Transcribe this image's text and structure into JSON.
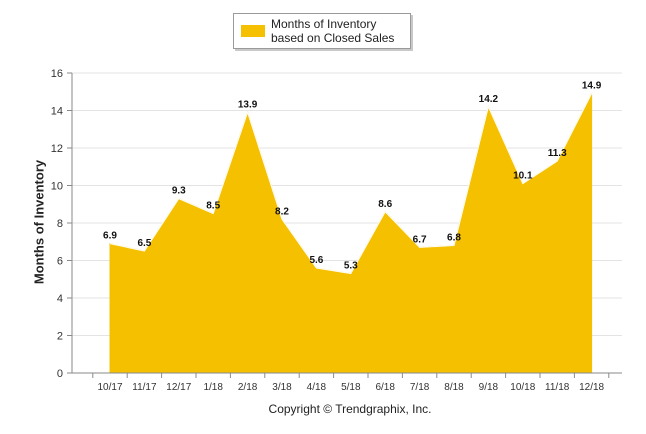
{
  "chart_data": {
    "type": "area",
    "legend": {
      "label": "Months of Inventory based on Closed Sales",
      "placement": "top-center"
    },
    "ylabel": "Months of Inventory",
    "xlabel": "",
    "ylim": [
      0,
      16
    ],
    "yticks": [
      0,
      2,
      4,
      6,
      8,
      10,
      12,
      14,
      16
    ],
    "grid": true,
    "color": "#F5C000",
    "categories": [
      "10/17",
      "11/17",
      "12/17",
      "1/18",
      "2/18",
      "3/18",
      "4/18",
      "5/18",
      "6/18",
      "7/18",
      "8/18",
      "9/18",
      "10/18",
      "11/18",
      "12/18"
    ],
    "values": [
      6.9,
      6.5,
      9.3,
      8.5,
      13.9,
      8.2,
      5.6,
      5.3,
      8.6,
      6.7,
      6.8,
      14.2,
      10.1,
      11.3,
      14.9
    ],
    "data_labels": [
      "6.9",
      "6.5",
      "9.3",
      "8.5",
      "13.9",
      "8.2",
      "5.6",
      "5.3",
      "8.6",
      "6.7",
      "6.8",
      "14.2",
      "10.1",
      "11.3",
      "14.9"
    ]
  },
  "footer": {
    "copyright": "Copyright © Trendgraphix, Inc."
  }
}
